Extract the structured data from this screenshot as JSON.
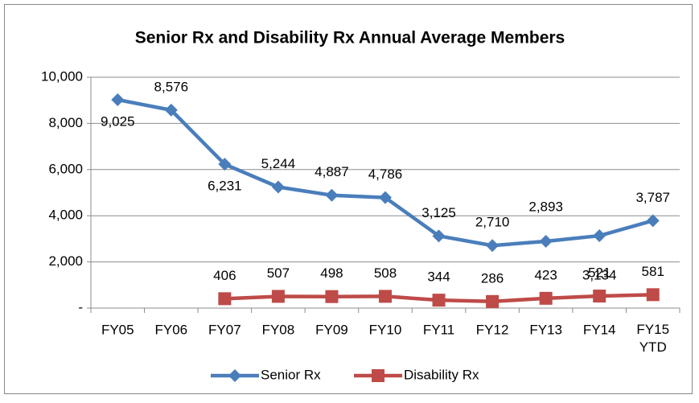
{
  "chart_data": {
    "type": "line",
    "title": "Senior Rx and Disability Rx Annual Average Members",
    "categories": [
      "FY05",
      "FY06",
      "FY07",
      "FY08",
      "FY09",
      "FY10",
      "FY11",
      "FY12",
      "FY13",
      "FY14",
      "FY15 YTD"
    ],
    "series": [
      {
        "name": "Senior Rx",
        "color": "#4a7ebb",
        "marker": "diamond",
        "values": [
          9025,
          8576,
          6231,
          5244,
          4887,
          4786,
          3125,
          2710,
          2893,
          3134,
          3787
        ],
        "value_labels": [
          "9,025",
          "8,576",
          "6,231",
          "5,244",
          "4,887",
          "4,786",
          "3,125",
          "2,710",
          "2,893",
          "3,134",
          "3,787"
        ]
      },
      {
        "name": "Disability Rx",
        "color": "#be4b48",
        "marker": "square",
        "values": [
          null,
          null,
          406,
          507,
          498,
          508,
          344,
          286,
          423,
          521,
          581
        ],
        "value_labels": [
          null,
          null,
          "406",
          "507",
          "498",
          "508",
          "344",
          "286",
          "423",
          "521",
          "581"
        ]
      }
    ],
    "ylim": [
      0,
      10000
    ],
    "yticks": [
      {
        "value": 0,
        "label": "-"
      },
      {
        "value": 2000,
        "label": "2,000"
      },
      {
        "value": 4000,
        "label": "4,000"
      },
      {
        "value": 6000,
        "label": "6,000"
      },
      {
        "value": 8000,
        "label": "8,000"
      },
      {
        "value": 10000,
        "label": "10,000"
      }
    ],
    "grid": true,
    "legend": "bottom"
  }
}
